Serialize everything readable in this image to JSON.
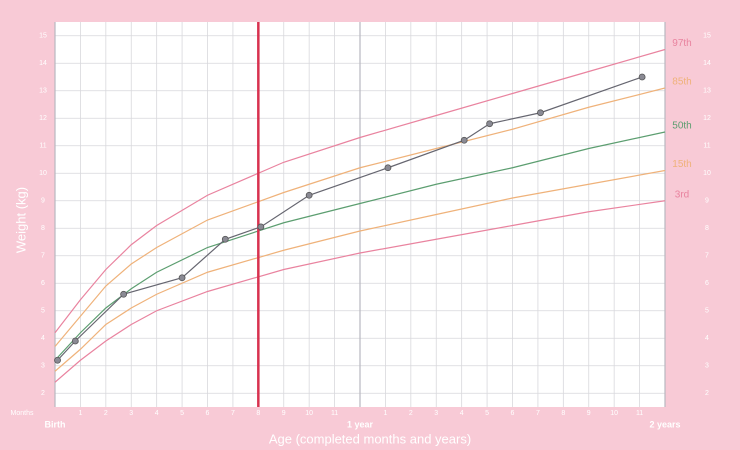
{
  "chart_data": {
    "type": "line",
    "y_label": "Weight (kg)",
    "x_label": "Age (completed months and years)",
    "x_unit_label": "Months",
    "xlim": [
      0,
      24
    ],
    "ylim": [
      1.5,
      15.5
    ],
    "yticks": [
      2,
      3,
      4,
      5,
      6,
      7,
      8,
      9,
      10,
      11,
      12,
      13,
      14,
      15
    ],
    "xticks": [
      {
        "value": 0,
        "label": "Birth"
      },
      1,
      2,
      3,
      4,
      5,
      6,
      7,
      8,
      9,
      10,
      11,
      {
        "value": 12,
        "label": "1 year"
      },
      {
        "value": 13,
        "label": "1"
      },
      {
        "value": 14,
        "label": "2"
      },
      {
        "value": 15,
        "label": "3"
      },
      {
        "value": 16,
        "label": "4"
      },
      {
        "value": 17,
        "label": "5"
      },
      {
        "value": 18,
        "label": "6"
      },
      {
        "value": 19,
        "label": "7"
      },
      {
        "value": 20,
        "label": "8"
      },
      {
        "value": 21,
        "label": "9"
      },
      {
        "value": 22,
        "label": "10"
      },
      {
        "value": 23,
        "label": "11"
      },
      {
        "value": 24,
        "label": "2 years"
      }
    ],
    "grid": true,
    "marker_line": {
      "x": 8,
      "color": "#d8324f"
    },
    "series": [
      {
        "name": "97th",
        "color": "#e9839f",
        "x": [
          0,
          1,
          2,
          3,
          4,
          6,
          9,
          12,
          15,
          18,
          21,
          24
        ],
        "values": [
          4.2,
          5.4,
          6.5,
          7.4,
          8.1,
          9.2,
          10.4,
          11.3,
          12.1,
          12.9,
          13.7,
          14.5
        ]
      },
      {
        "name": "85th",
        "color": "#efb27a",
        "x": [
          0,
          1,
          2,
          3,
          4,
          6,
          9,
          12,
          15,
          18,
          21,
          24
        ],
        "values": [
          3.7,
          4.8,
          5.9,
          6.7,
          7.3,
          8.3,
          9.3,
          10.2,
          10.9,
          11.6,
          12.4,
          13.1
        ]
      },
      {
        "name": "50th",
        "color": "#5c9e70",
        "x": [
          0,
          1,
          2,
          3,
          4,
          6,
          9,
          12,
          15,
          18,
          21,
          24
        ],
        "values": [
          3.2,
          4.2,
          5.1,
          5.8,
          6.4,
          7.3,
          8.2,
          8.9,
          9.6,
          10.2,
          10.9,
          11.5
        ]
      },
      {
        "name": "15th",
        "color": "#efb27a",
        "x": [
          0,
          1,
          2,
          3,
          4,
          6,
          9,
          12,
          15,
          18,
          21,
          24
        ],
        "values": [
          2.8,
          3.6,
          4.5,
          5.1,
          5.6,
          6.4,
          7.2,
          7.9,
          8.5,
          9.1,
          9.6,
          10.1
        ]
      },
      {
        "name": "3rd",
        "color": "#e9839f",
        "x": [
          0,
          1,
          2,
          3,
          4,
          6,
          9,
          12,
          15,
          18,
          21,
          24
        ],
        "values": [
          2.4,
          3.2,
          3.9,
          4.5,
          5.0,
          5.7,
          6.5,
          7.1,
          7.6,
          8.1,
          8.6,
          9.0
        ]
      }
    ],
    "measurements": {
      "color": "#666670",
      "x": [
        0.1,
        0.8,
        2.7,
        5.0,
        6.7,
        8.1,
        10.0,
        13.1,
        16.1,
        17.1,
        19.1,
        23.1
      ],
      "values": [
        3.2,
        3.9,
        5.6,
        6.2,
        7.6,
        8.05,
        9.2,
        10.2,
        11.2,
        11.8,
        12.2,
        13.5
      ]
    }
  }
}
